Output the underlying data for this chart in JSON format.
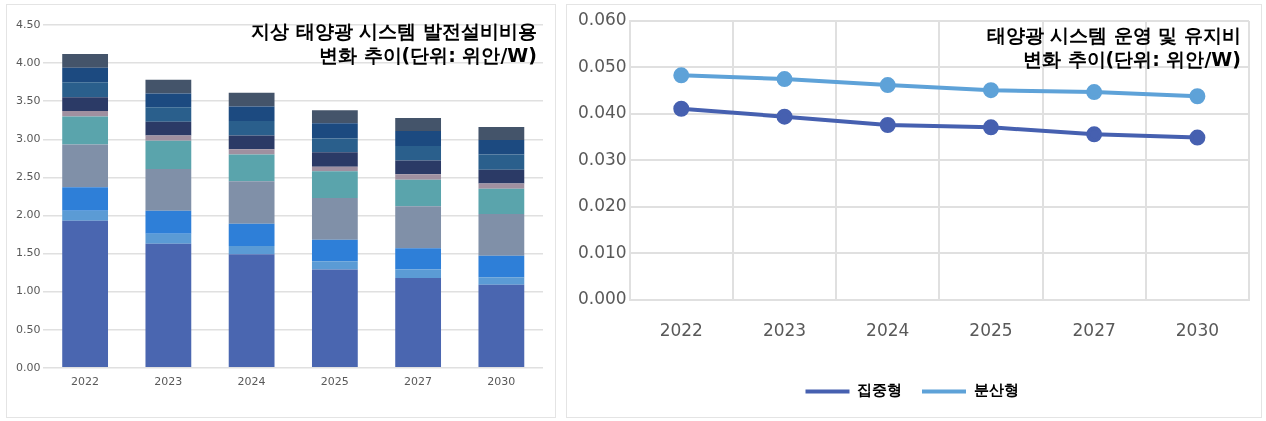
{
  "chart_data": [
    {
      "type": "bar",
      "title": "지상 태양광 시스템 발전설비비용\n변화 추이(단위: 위안/W)",
      "categories": [
        "2022",
        "2023",
        "2024",
        "2025",
        "2027",
        "2030"
      ],
      "stacked": true,
      "grid": "y",
      "legend": false,
      "ylim": [
        0,
        4.5
      ],
      "yticks": [
        {
          "value": 0,
          "label": "0.00"
        },
        {
          "value": 0.5,
          "label": "0.50"
        },
        {
          "value": 1,
          "label": "1.00"
        },
        {
          "value": 1.5,
          "label": "1.50"
        },
        {
          "value": 2,
          "label": "2.00"
        },
        {
          "value": 2.5,
          "label": "2.50"
        },
        {
          "value": 3,
          "label": "3.00"
        },
        {
          "value": 3.5,
          "label": "3.50"
        },
        {
          "value": 4,
          "label": "4.00"
        },
        {
          "value": 4.5,
          "label": "4.50"
        }
      ],
      "series": [
        {
          "color": "#4a66b0",
          "values": [
            1.93,
            1.63,
            1.49,
            1.29,
            1.18,
            1.09
          ]
        },
        {
          "color": "#5b9bd5",
          "values": [
            0.13,
            0.13,
            0.11,
            0.11,
            0.11,
            0.1
          ]
        },
        {
          "color": "#2e7fd8",
          "values": [
            0.31,
            0.3,
            0.29,
            0.28,
            0.28,
            0.28
          ]
        },
        {
          "color": "#8090a8",
          "values": [
            0.56,
            0.55,
            0.56,
            0.55,
            0.55,
            0.55
          ]
        },
        {
          "color": "#5aa4ac",
          "values": [
            0.37,
            0.37,
            0.35,
            0.35,
            0.35,
            0.33
          ]
        },
        {
          "color": "#a090a0",
          "values": [
            0.07,
            0.07,
            0.07,
            0.06,
            0.07,
            0.07
          ]
        },
        {
          "color": "#2b3a66",
          "values": [
            0.18,
            0.18,
            0.18,
            0.19,
            0.18,
            0.18
          ]
        },
        {
          "color": "#2a5f8c",
          "values": [
            0.2,
            0.19,
            0.19,
            0.18,
            0.19,
            0.2
          ]
        },
        {
          "color": "#1c4a80",
          "values": [
            0.19,
            0.18,
            0.19,
            0.2,
            0.2,
            0.19
          ]
        },
        {
          "color": "#44546a",
          "values": [
            0.18,
            0.18,
            0.18,
            0.17,
            0.17,
            0.17
          ]
        }
      ]
    },
    {
      "type": "line",
      "title": "태양광 시스템 운영 및 유지비\n변화 추이(단위: 위안/W)",
      "categories": [
        "2022",
        "2023",
        "2024",
        "2025",
        "2027",
        "2030"
      ],
      "grid": true,
      "legend": "bottom",
      "marker": "circle",
      "ylim": [
        0,
        0.06
      ],
      "yticks": [
        {
          "value": 0,
          "label": "0.000"
        },
        {
          "value": 0.01,
          "label": "0.010"
        },
        {
          "value": 0.02,
          "label": "0.020"
        },
        {
          "value": 0.03,
          "label": "0.030"
        },
        {
          "value": 0.04,
          "label": "0.040"
        },
        {
          "value": 0.05,
          "label": "0.050"
        },
        {
          "value": 0.06,
          "label": "0.060"
        }
      ],
      "series": [
        {
          "name": "집중형",
          "color": "#4660b0",
          "values": [
            0.0411,
            0.0394,
            0.0376,
            0.0371,
            0.0356,
            0.0349
          ]
        },
        {
          "name": "분산형",
          "color": "#5ea2d8",
          "values": [
            0.0483,
            0.0475,
            0.0462,
            0.0451,
            0.0447,
            0.0438
          ]
        }
      ]
    }
  ]
}
